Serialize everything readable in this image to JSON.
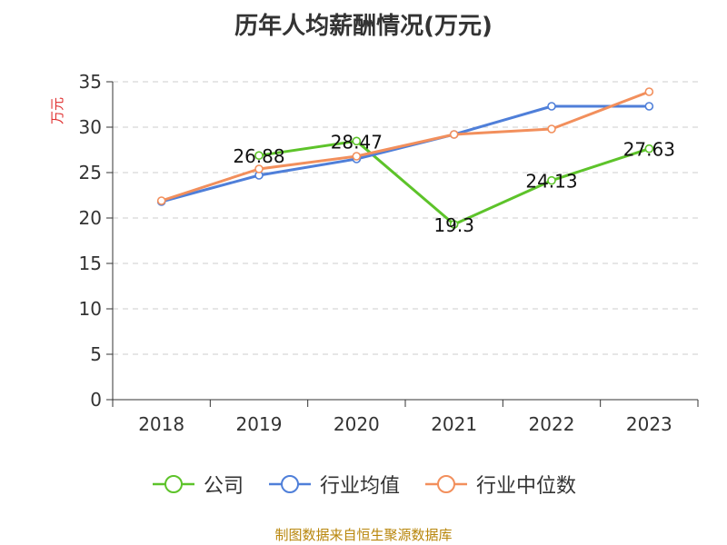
{
  "chart_data": {
    "type": "line",
    "title": "历年人均薪酬情况(万元)",
    "ylabel": "万元",
    "ylim": [
      0,
      35
    ],
    "yticks": [
      0,
      5,
      10,
      15,
      20,
      25,
      30,
      35
    ],
    "categories": [
      "2018",
      "2019",
      "2020",
      "2021",
      "2022",
      "2023"
    ],
    "grid": true,
    "legend_position": "bottom",
    "series": [
      {
        "name": "公司",
        "color": "#5dc32a",
        "values": [
          null,
          26.88,
          28.47,
          19.3,
          24.13,
          27.63
        ],
        "labels": [
          "",
          "26.88",
          "28.47",
          "19.3",
          "24.13",
          "27.63"
        ]
      },
      {
        "name": "行业均值",
        "color": "#4f7fd9",
        "values": [
          21.8,
          24.7,
          26.5,
          29.2,
          32.3,
          32.3
        ]
      },
      {
        "name": "行业中位数",
        "color": "#f28f5c",
        "values": [
          21.9,
          25.4,
          26.8,
          29.2,
          29.8,
          33.9
        ]
      }
    ]
  },
  "source": "制图数据来自恒生聚源数据库"
}
